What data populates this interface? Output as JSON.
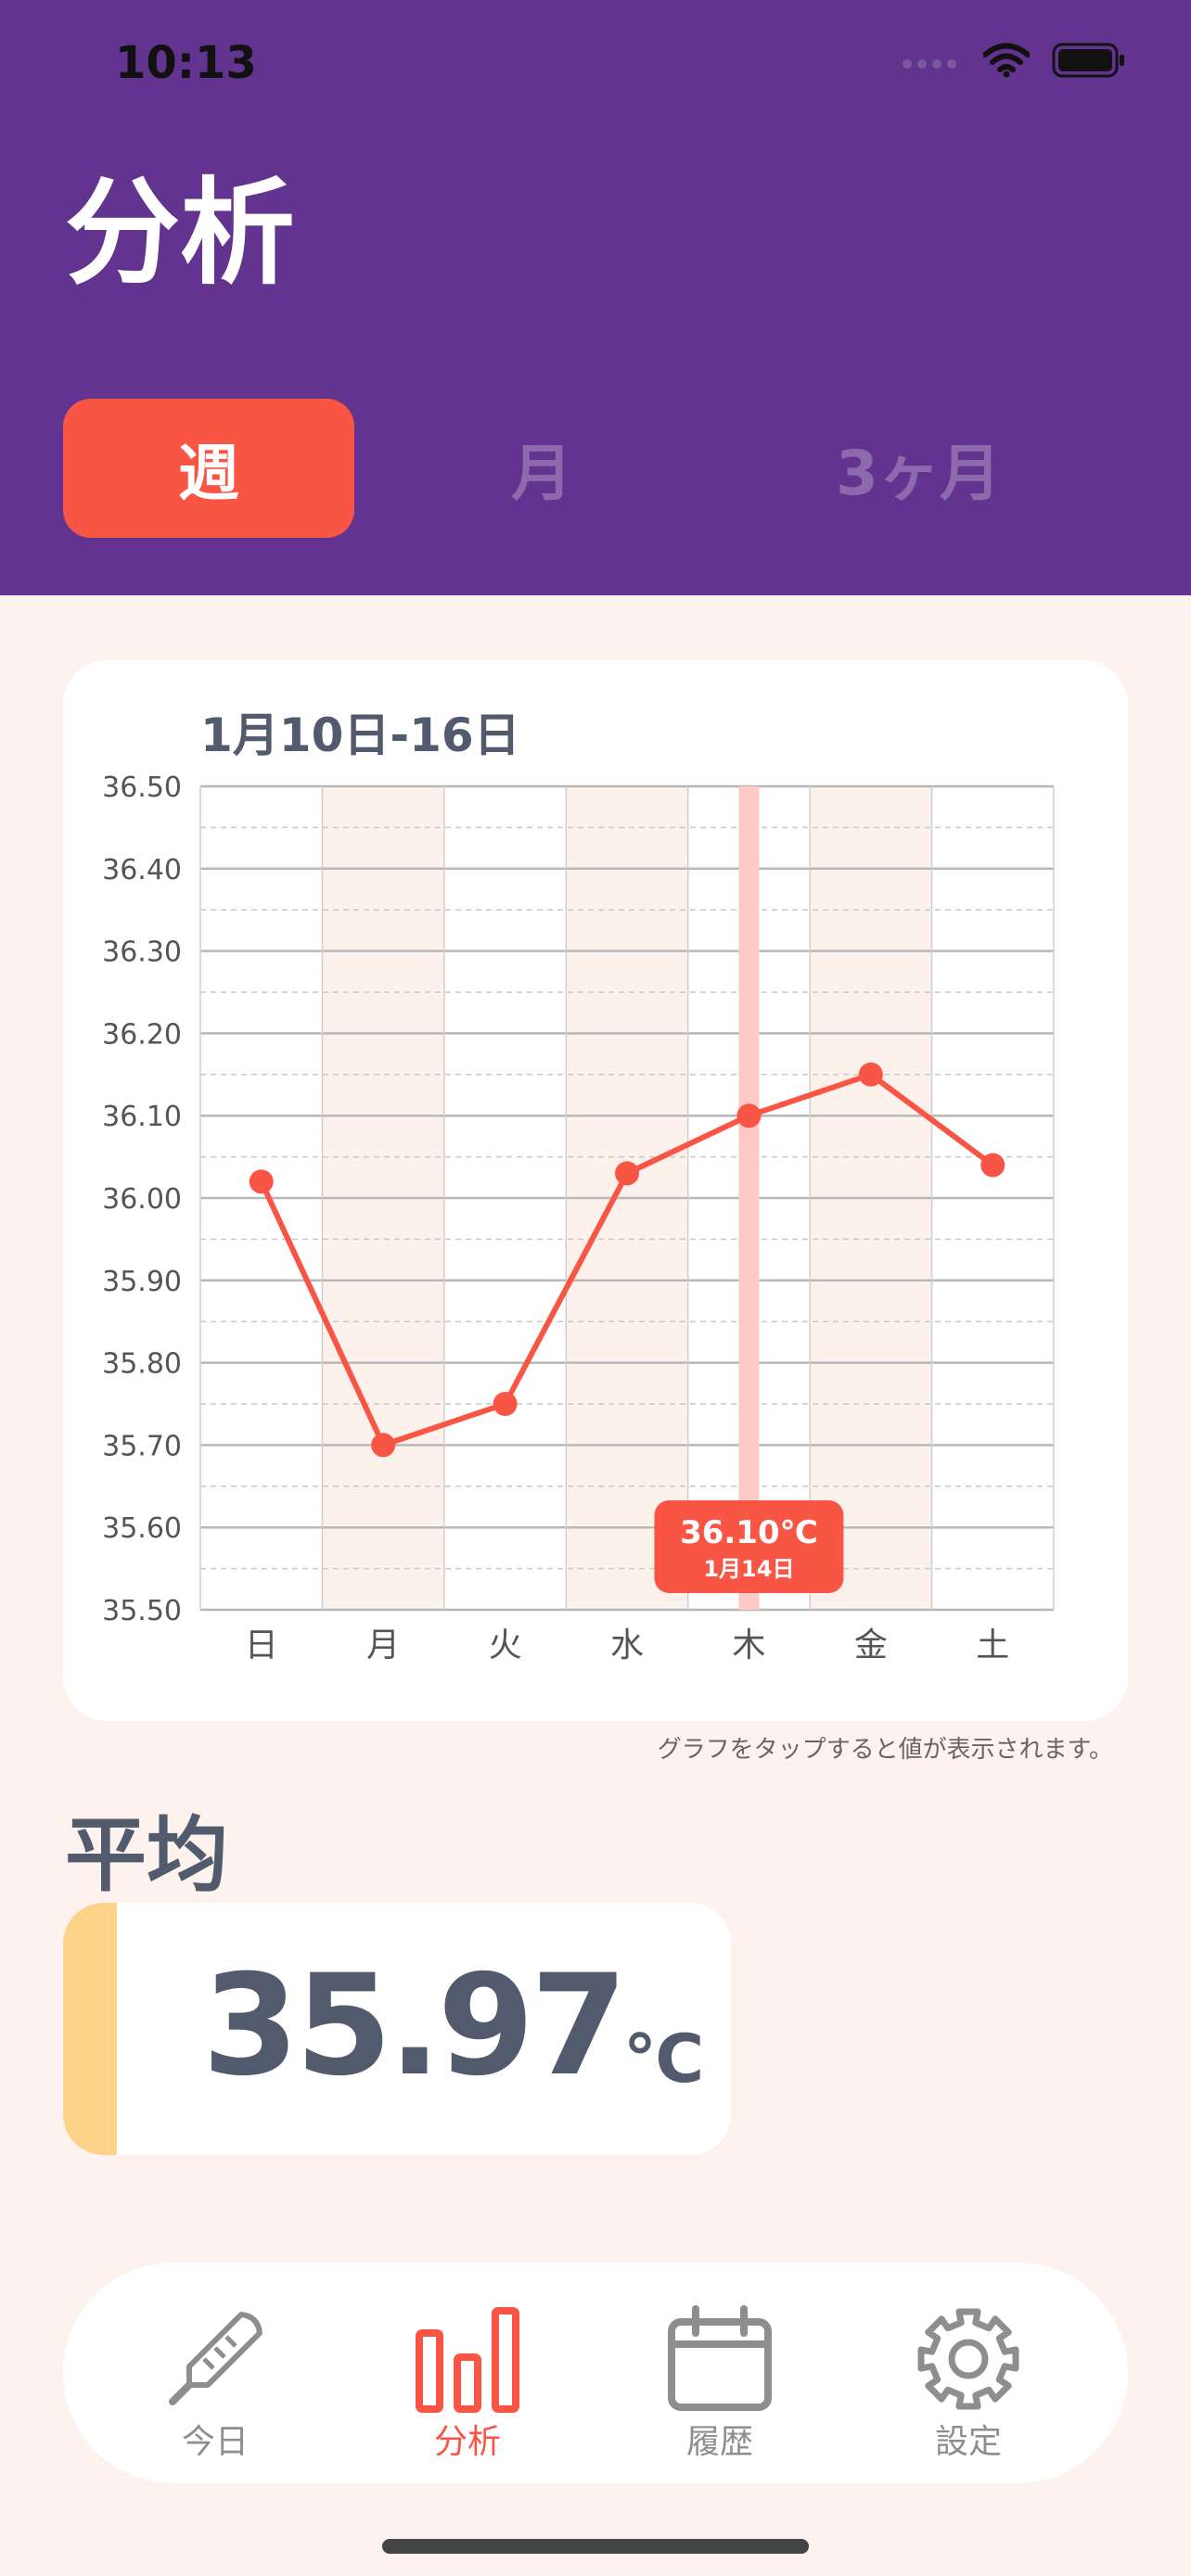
{
  "status_bar": {
    "time": "10:13"
  },
  "header": {
    "title": "分析"
  },
  "period_tabs": [
    {
      "label": "週",
      "active": true
    },
    {
      "label": "月",
      "active": false
    },
    {
      "label": "3ヶ月",
      "active": false
    }
  ],
  "chart_data": {
    "type": "line",
    "title": "1月10日-16日",
    "categories": [
      "日",
      "月",
      "火",
      "水",
      "木",
      "金",
      "土"
    ],
    "values": [
      36.02,
      35.7,
      35.75,
      36.03,
      36.1,
      36.15,
      36.04
    ],
    "ylim": [
      35.5,
      36.5
    ],
    "y_ticks": [
      "36.50",
      "36.40",
      "36.30",
      "36.20",
      "36.10",
      "36.00",
      "35.90",
      "35.80",
      "35.70",
      "35.60",
      "35.50"
    ],
    "grid": true,
    "selected_index": 4,
    "tooltip": {
      "value": "36.10",
      "unit": "℃",
      "date": "1月14日"
    },
    "line_color": "#f95545"
  },
  "chart_hint": "グラフをタップすると値が表示されます。",
  "average": {
    "label": "平均",
    "value": "35.97",
    "unit": "℃"
  },
  "tab_bar": [
    {
      "label": "今日",
      "icon": "thermometer-icon",
      "active": false
    },
    {
      "label": "分析",
      "icon": "bar-chart-icon",
      "active": true
    },
    {
      "label": "履歴",
      "icon": "calendar-icon",
      "active": false
    },
    {
      "label": "設定",
      "icon": "gear-icon",
      "active": false
    }
  ],
  "colors": {
    "header": "#62338f",
    "accent": "#f95545",
    "background": "#fdf2ed",
    "average_stripe": "#fdd289"
  }
}
